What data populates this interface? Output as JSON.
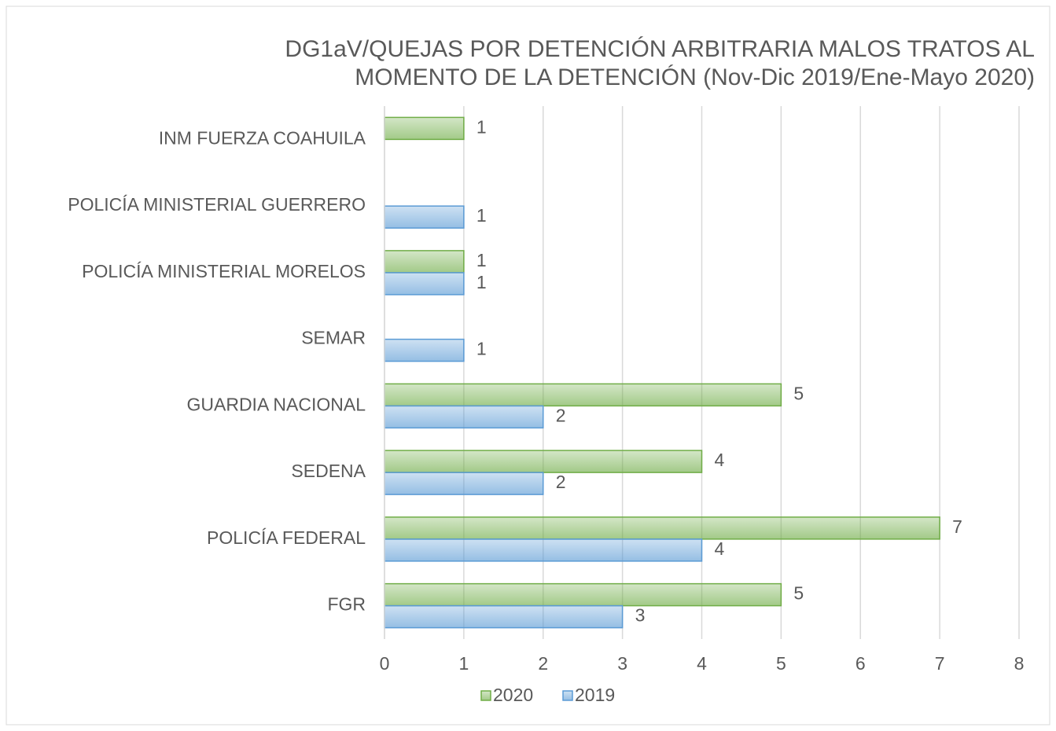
{
  "chart_data": {
    "type": "hbar",
    "title": [
      "DG1aV/QUEJAS POR DETENCIÓN ARBITRARIA MALOS TRATOS AL",
      "MOMENTO DE LA DETENCIÓN (Nov-Dic 2019/Ene-Mayo 2020)"
    ],
    "categories": [
      "INM FUERZA COAHUILA",
      "POLICÍA MINISTERIAL GUERRERO",
      "POLICÍA MINISTERIAL MORELOS",
      "SEMAR",
      "GUARDIA NACIONAL",
      "SEDENA",
      "POLICÍA FEDERAL",
      "FGR"
    ],
    "series": [
      {
        "name": "2020",
        "color": "#70ad47",
        "values": [
          1,
          null,
          1,
          null,
          5,
          4,
          7,
          5
        ]
      },
      {
        "name": "2019",
        "color": "#5b9bd5",
        "values": [
          null,
          1,
          1,
          1,
          2,
          2,
          4,
          3
        ]
      }
    ],
    "xlim": [
      0,
      8
    ],
    "xticks": [
      0,
      1,
      2,
      3,
      4,
      5,
      6,
      7,
      8
    ],
    "grid": true,
    "legend": "bottom"
  }
}
